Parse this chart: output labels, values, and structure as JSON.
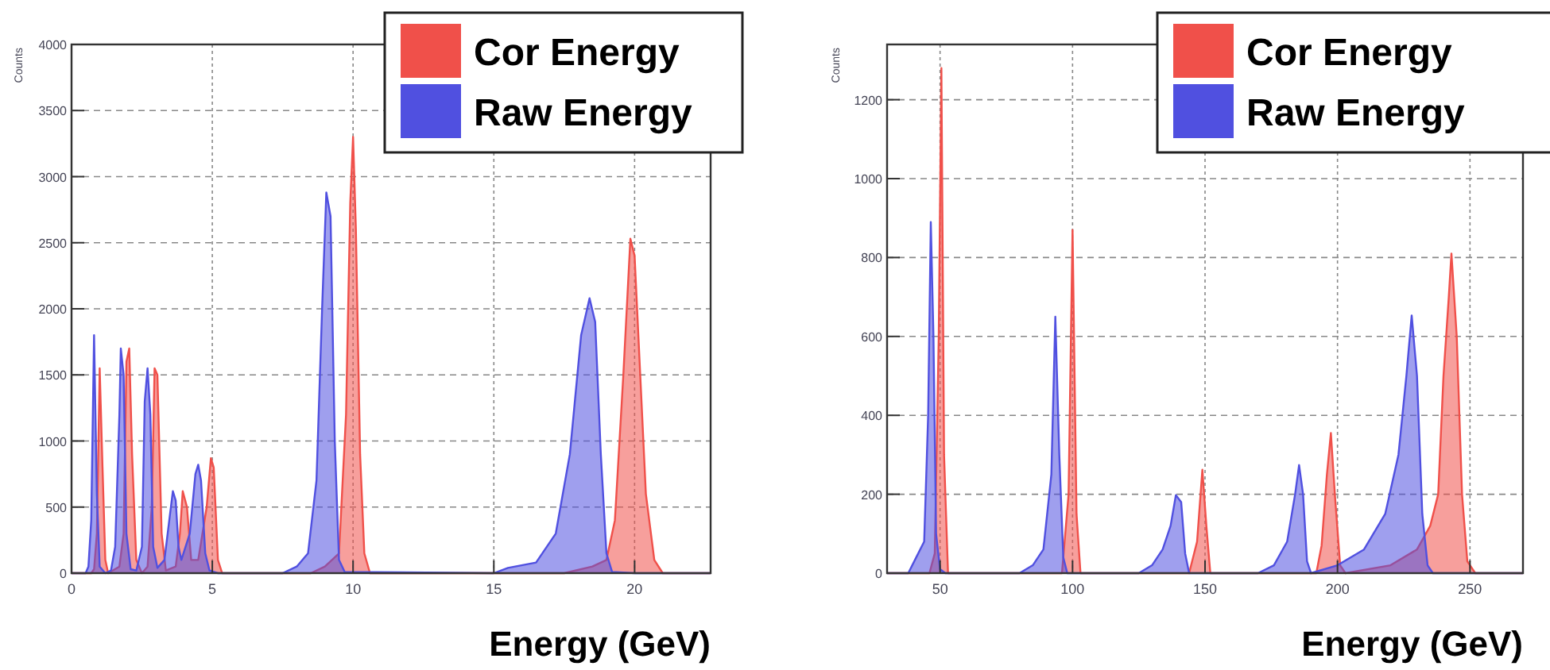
{
  "chart_data": [
    {
      "type": "area",
      "xlabel": "Energy (GeV)",
      "ylabel": "Counts",
      "xlim": [
        0,
        22.7
      ],
      "ylim": [
        0,
        4000
      ],
      "xticks": [
        0,
        5,
        10,
        15,
        20
      ],
      "yticks": [
        0,
        500,
        1000,
        1500,
        2000,
        2500,
        3000,
        3500,
        4000
      ],
      "grid": true,
      "legend": "top right",
      "series": [
        {
          "name": "Cor Energy",
          "color": "#f0504a",
          "x": [
            0,
            0.7,
            0.8,
            0.9,
            1.0,
            1.1,
            1.2,
            1.3,
            1.7,
            1.85,
            1.95,
            2.05,
            2.15,
            2.3,
            2.5,
            2.7,
            2.85,
            2.95,
            3.05,
            3.2,
            3.35,
            3.7,
            3.85,
            3.95,
            4.1,
            4.25,
            4.5,
            4.8,
            4.95,
            5.05,
            5.2,
            5.35,
            8.5,
            9.0,
            9.5,
            9.75,
            9.9,
            10.0,
            10.1,
            10.25,
            10.4,
            10.6,
            17.5,
            18.5,
            19.0,
            19.3,
            19.6,
            19.85,
            20.0,
            20.2,
            20.4,
            20.7,
            21.0,
            22.7
          ],
          "values": [
            0,
            0,
            30,
            300,
            1550,
            800,
            100,
            0,
            50,
            300,
            1600,
            1700,
            900,
            100,
            0,
            50,
            500,
            1550,
            1500,
            300,
            20,
            50,
            300,
            620,
            500,
            100,
            100,
            500,
            870,
            800,
            100,
            0,
            0,
            50,
            150,
            1200,
            2800,
            3300,
            2600,
            900,
            150,
            0,
            0,
            50,
            100,
            400,
            1500,
            2530,
            2400,
            1500,
            600,
            100,
            0,
            0
          ]
        },
        {
          "name": "Raw Energy",
          "color": "#5050e0",
          "x": [
            0,
            0.5,
            0.6,
            0.7,
            0.8,
            0.9,
            1.0,
            1.2,
            1.4,
            1.55,
            1.7,
            1.75,
            1.85,
            1.95,
            2.1,
            2.3,
            2.5,
            2.6,
            2.7,
            2.8,
            2.9,
            3.05,
            3.3,
            3.5,
            3.6,
            3.7,
            3.8,
            3.9,
            4.2,
            4.4,
            4.5,
            4.6,
            4.75,
            4.9,
            5.2,
            7.5,
            8.0,
            8.4,
            8.7,
            8.9,
            9.05,
            9.2,
            9.35,
            9.5,
            9.7,
            15.0,
            15.5,
            16.5,
            17.2,
            17.7,
            18.1,
            18.4,
            18.6,
            18.8,
            19.0,
            19.2,
            20,
            22.7
          ],
          "values": [
            0,
            0,
            50,
            400,
            1800,
            600,
            50,
            0,
            20,
            200,
            1200,
            1700,
            1500,
            300,
            30,
            20,
            200,
            1300,
            1550,
            1200,
            200,
            40,
            100,
            450,
            620,
            550,
            200,
            100,
            300,
            750,
            820,
            700,
            150,
            20,
            0,
            0,
            50,
            150,
            700,
            2000,
            2880,
            2700,
            1000,
            100,
            10,
            0,
            40,
            80,
            300,
            900,
            1800,
            2080,
            1900,
            900,
            150,
            10,
            0,
            0
          ]
        }
      ]
    },
    {
      "type": "area",
      "xlabel": "Energy (GeV)",
      "ylabel": "Counts",
      "xlim": [
        30,
        270
      ],
      "ylim": [
        0,
        1340
      ],
      "xticks": [
        50,
        100,
        150,
        200,
        250
      ],
      "yticks": [
        0,
        200,
        400,
        600,
        800,
        1000,
        1200
      ],
      "grid": true,
      "legend": "top right",
      "series": [
        {
          "name": "Cor Energy",
          "color": "#f0504a",
          "x": [
            30,
            46,
            48,
            49.5,
            50.5,
            51.5,
            53,
            96,
            98.5,
            100,
            101.5,
            103,
            144,
            147,
            149,
            150.5,
            152,
            192,
            194,
            196,
            197.5,
            199,
            201,
            203,
            220,
            230,
            235,
            238,
            240,
            242,
            243,
            245,
            247,
            249,
            252,
            270
          ],
          "values": [
            0,
            0,
            50,
            600,
            1280,
            300,
            0,
            0,
            200,
            870,
            150,
            0,
            0,
            80,
            262,
            120,
            0,
            0,
            70,
            250,
            355,
            200,
            20,
            0,
            20,
            60,
            120,
            200,
            500,
            700,
            810,
            600,
            200,
            30,
            0,
            0
          ]
        },
        {
          "name": "Raw Energy",
          "color": "#5050e0",
          "x": [
            30,
            38,
            41,
            44,
            45.5,
            46.5,
            47.5,
            48.5,
            50,
            52,
            80,
            85,
            89,
            92,
            93.5,
            95,
            96.5,
            98,
            125,
            130,
            134,
            137,
            139,
            141,
            142.5,
            144,
            170,
            176,
            181,
            184,
            185.5,
            187,
            188.5,
            190,
            200,
            210,
            218,
            223,
            226,
            228,
            230,
            232,
            234,
            236,
            270
          ],
          "values": [
            0,
            0,
            40,
            80,
            400,
            890,
            600,
            100,
            10,
            0,
            0,
            20,
            60,
            250,
            650,
            300,
            40,
            0,
            0,
            20,
            60,
            120,
            198,
            180,
            50,
            0,
            0,
            20,
            80,
            200,
            274,
            200,
            30,
            0,
            20,
            60,
            150,
            300,
            500,
            653,
            500,
            150,
            20,
            0,
            0
          ]
        }
      ]
    }
  ]
}
